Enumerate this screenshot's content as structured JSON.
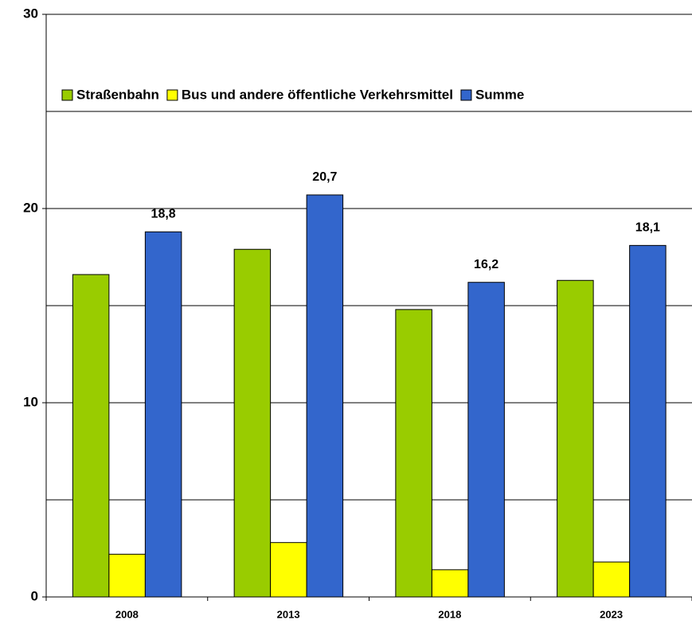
{
  "chart_data": {
    "type": "bar",
    "categories": [
      "2008",
      "2013",
      "2018",
      "2023"
    ],
    "series": [
      {
        "name": "Straßenbahn",
        "color": "#99cc00",
        "values": [
          16.6,
          17.9,
          14.8,
          16.3
        ]
      },
      {
        "name": "Bus und andere öffentliche Verkehrsmittel",
        "color": "#ffff00",
        "values": [
          2.2,
          2.8,
          1.4,
          1.8
        ]
      },
      {
        "name": "Summe",
        "color": "#3366cc",
        "values": [
          18.8,
          20.7,
          16.2,
          18.1
        ],
        "value_labels": [
          "18,8",
          "20,7",
          "16,2",
          "18,1"
        ]
      }
    ],
    "ylim": [
      0,
      30
    ],
    "yticks": [
      0,
      10,
      20,
      30
    ],
    "grid_lines": [
      5,
      10,
      15,
      20,
      25,
      30
    ],
    "legend": "top"
  }
}
